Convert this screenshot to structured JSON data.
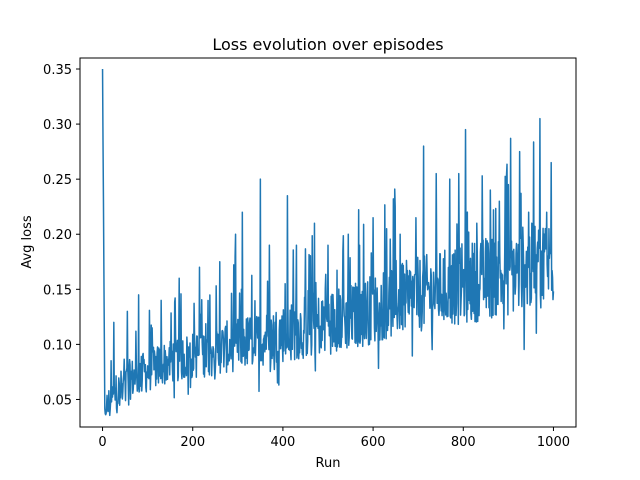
{
  "chart_data": {
    "type": "line",
    "title": "Loss evolution over episodes",
    "xlabel": "Run",
    "ylabel": "Avg loss",
    "xlim": [
      -50,
      1050
    ],
    "ylim": [
      0.025,
      0.36
    ],
    "xticks": [
      0,
      200,
      400,
      600,
      800,
      1000
    ],
    "yticks": [
      0.05,
      0.1,
      0.15,
      0.2,
      0.25,
      0.3,
      0.35
    ],
    "ytick_labels": [
      "0.05",
      "0.10",
      "0.15",
      "0.20",
      "0.25",
      "0.30",
      "0.35"
    ],
    "grid": false,
    "legend": "none",
    "series": [
      {
        "color": "#1f77b4",
        "trend": {
          "x": [
            0,
            5,
            20,
            60,
            150,
            250,
            350,
            450,
            550,
            650,
            750,
            850,
            950,
            1000
          ],
          "y": [
            0.35,
            0.038,
            0.05,
            0.068,
            0.085,
            0.095,
            0.105,
            0.115,
            0.125,
            0.14,
            0.15,
            0.16,
            0.17,
            0.175
          ]
        },
        "spikes": [
          {
            "x": 25,
            "y": 0.12
          },
          {
            "x": 55,
            "y": 0.13
          },
          {
            "x": 80,
            "y": 0.145
          },
          {
            "x": 110,
            "y": 0.115
          },
          {
            "x": 130,
            "y": 0.14
          },
          {
            "x": 170,
            "y": 0.16
          },
          {
            "x": 215,
            "y": 0.17
          },
          {
            "x": 260,
            "y": 0.175
          },
          {
            "x": 295,
            "y": 0.2
          },
          {
            "x": 310,
            "y": 0.22
          },
          {
            "x": 350,
            "y": 0.25
          },
          {
            "x": 370,
            "y": 0.19
          },
          {
            "x": 410,
            "y": 0.235
          },
          {
            "x": 430,
            "y": 0.19
          },
          {
            "x": 470,
            "y": 0.21
          },
          {
            "x": 500,
            "y": 0.19
          },
          {
            "x": 545,
            "y": 0.2
          },
          {
            "x": 570,
            "y": 0.19
          },
          {
            "x": 600,
            "y": 0.215
          },
          {
            "x": 630,
            "y": 0.205
          },
          {
            "x": 660,
            "y": 0.2
          },
          {
            "x": 695,
            "y": 0.215
          },
          {
            "x": 712,
            "y": 0.28
          },
          {
            "x": 740,
            "y": 0.255
          },
          {
            "x": 770,
            "y": 0.25
          },
          {
            "x": 790,
            "y": 0.255
          },
          {
            "x": 805,
            "y": 0.295
          },
          {
            "x": 830,
            "y": 0.21
          },
          {
            "x": 860,
            "y": 0.24
          },
          {
            "x": 880,
            "y": 0.23
          },
          {
            "x": 900,
            "y": 0.245
          },
          {
            "x": 925,
            "y": 0.275
          },
          {
            "x": 945,
            "y": 0.22
          },
          {
            "x": 970,
            "y": 0.305
          },
          {
            "x": 985,
            "y": 0.22
          },
          {
            "x": 995,
            "y": 0.265
          }
        ]
      }
    ]
  }
}
